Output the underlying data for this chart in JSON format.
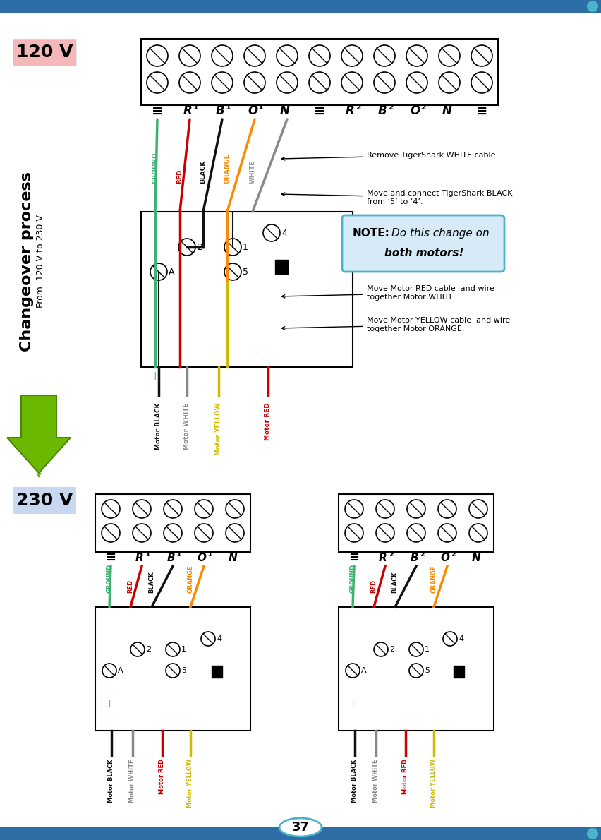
{
  "bg_color": "#f0f4f8",
  "title_120v": "120 V",
  "title_230v": "230 V",
  "changeover_title": "Changeover process",
  "changeover_sub": "From  120 V to 230 V",
  "page_num": "37",
  "header_bar_color": "#2e6ea6",
  "header_bar_color2": "#4ab3c8",
  "note_text": "NOTE:",
  "note_body": " Do this change on\n    both motors!",
  "note_bg": "#d6eaf8",
  "note_border": "#4ab3c8",
  "annotations": [
    "Remove TigerShark WHITE cable.",
    "Move and connect TigerShark BLACK\nfrom ‘5’ to ‘4’.",
    "Move Motor RED cable  and wire\ntogether Motor WHITE.",
    "Move Motor YELLOW cable  and wire\ntogether Motor ORANGE."
  ],
  "wire_colors": {
    "ground": "#3cb371",
    "red": "#cc0000",
    "black": "#111111",
    "orange": "#ff8800",
    "white": "#888888",
    "yellow": "#ccbb00"
  }
}
